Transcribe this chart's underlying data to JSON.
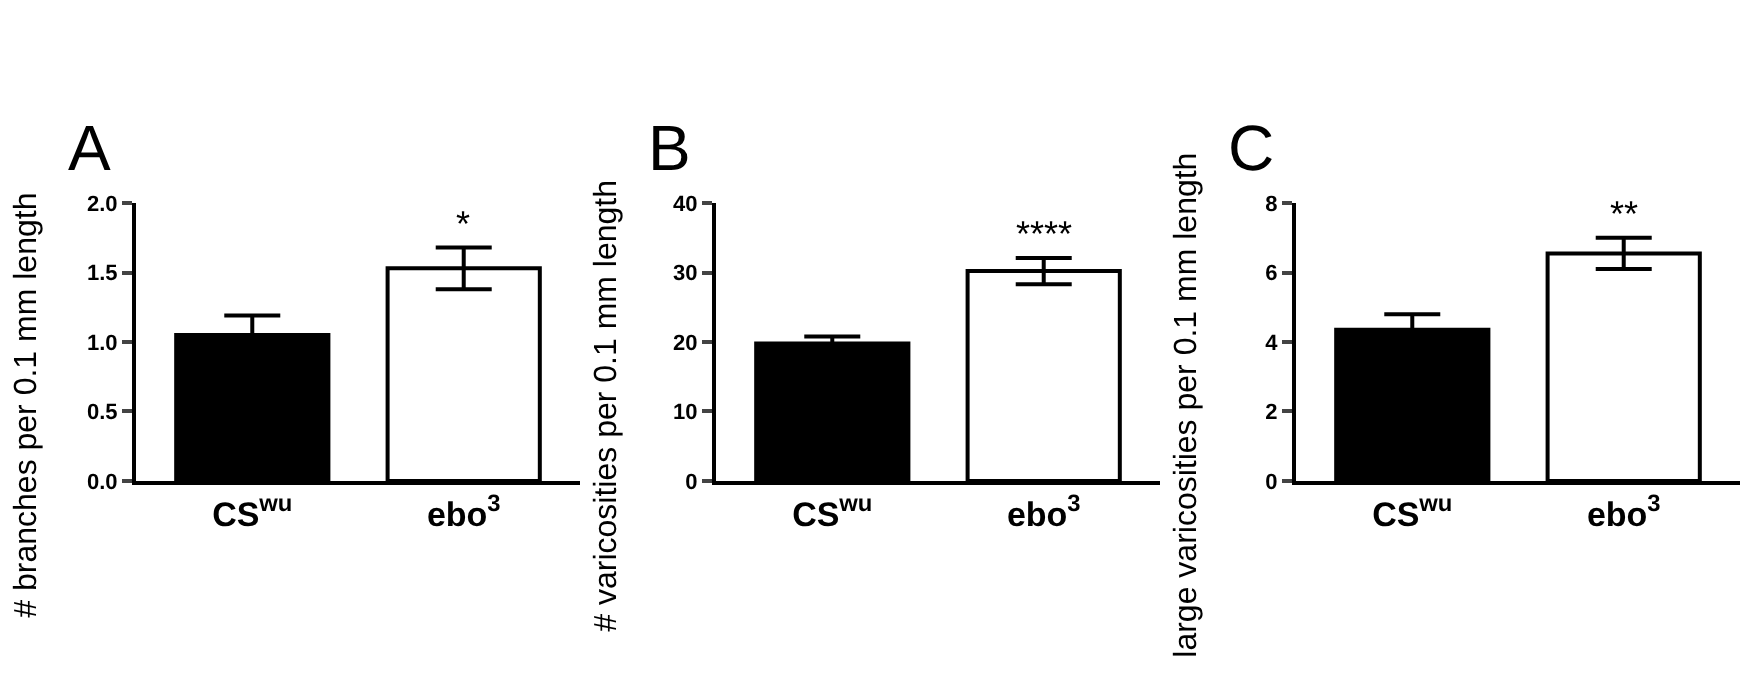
{
  "chart_data": [
    {
      "type": "bar",
      "title": "A",
      "ylabel": "# branches per 0.1 mm length",
      "categories": [
        "CS$^{wu}$",
        "ebo$^{3}$"
      ],
      "values": [
        1.05,
        1.53
      ],
      "errors": [
        0.14,
        0.15
      ],
      "colors": [
        "#000000",
        "#ffffff"
      ],
      "ylim": [
        0,
        2.0
      ],
      "yticks": [
        {
          "value": 0,
          "label": "0.0"
        },
        0.5,
        {
          "value": 1,
          "label": "1.0"
        },
        1.5,
        {
          "value": 2,
          "label": "2.0"
        }
      ],
      "annotations": [
        {
          "text": "*",
          "x": "ebo$^{3}$",
          "y": 1.68
        }
      ]
    },
    {
      "type": "bar",
      "title": "B",
      "ylabel": "# varicosities per 0.1 mm length",
      "categories": [
        "CS$^{wu}$",
        "ebo$^{3}$"
      ],
      "values": [
        19.8,
        30.2
      ],
      "errors": [
        1.0,
        1.9
      ],
      "colors": [
        "#000000",
        "#ffffff"
      ],
      "ylim": [
        0,
        40
      ],
      "yticks": [
        0,
        10,
        20,
        30,
        40
      ],
      "annotations": [
        {
          "text": "****",
          "x": "ebo$^{3}$",
          "y": 32.1
        }
      ]
    },
    {
      "type": "bar",
      "title": "C",
      "ylabel": "large varicosities per 0.1 mm length",
      "categories": [
        "CS$^{wu}$",
        "ebo$^{3}$"
      ],
      "values": [
        4.35,
        6.55
      ],
      "errors": [
        0.45,
        0.45
      ],
      "colors": [
        "#000000",
        "#ffffff"
      ],
      "ylim": [
        0,
        8
      ],
      "yticks": [
        0,
        2,
        4,
        6,
        8
      ],
      "annotations": [
        {
          "text": "**",
          "x": "ebo$^{3}$",
          "y": 7.0
        }
      ]
    }
  ]
}
